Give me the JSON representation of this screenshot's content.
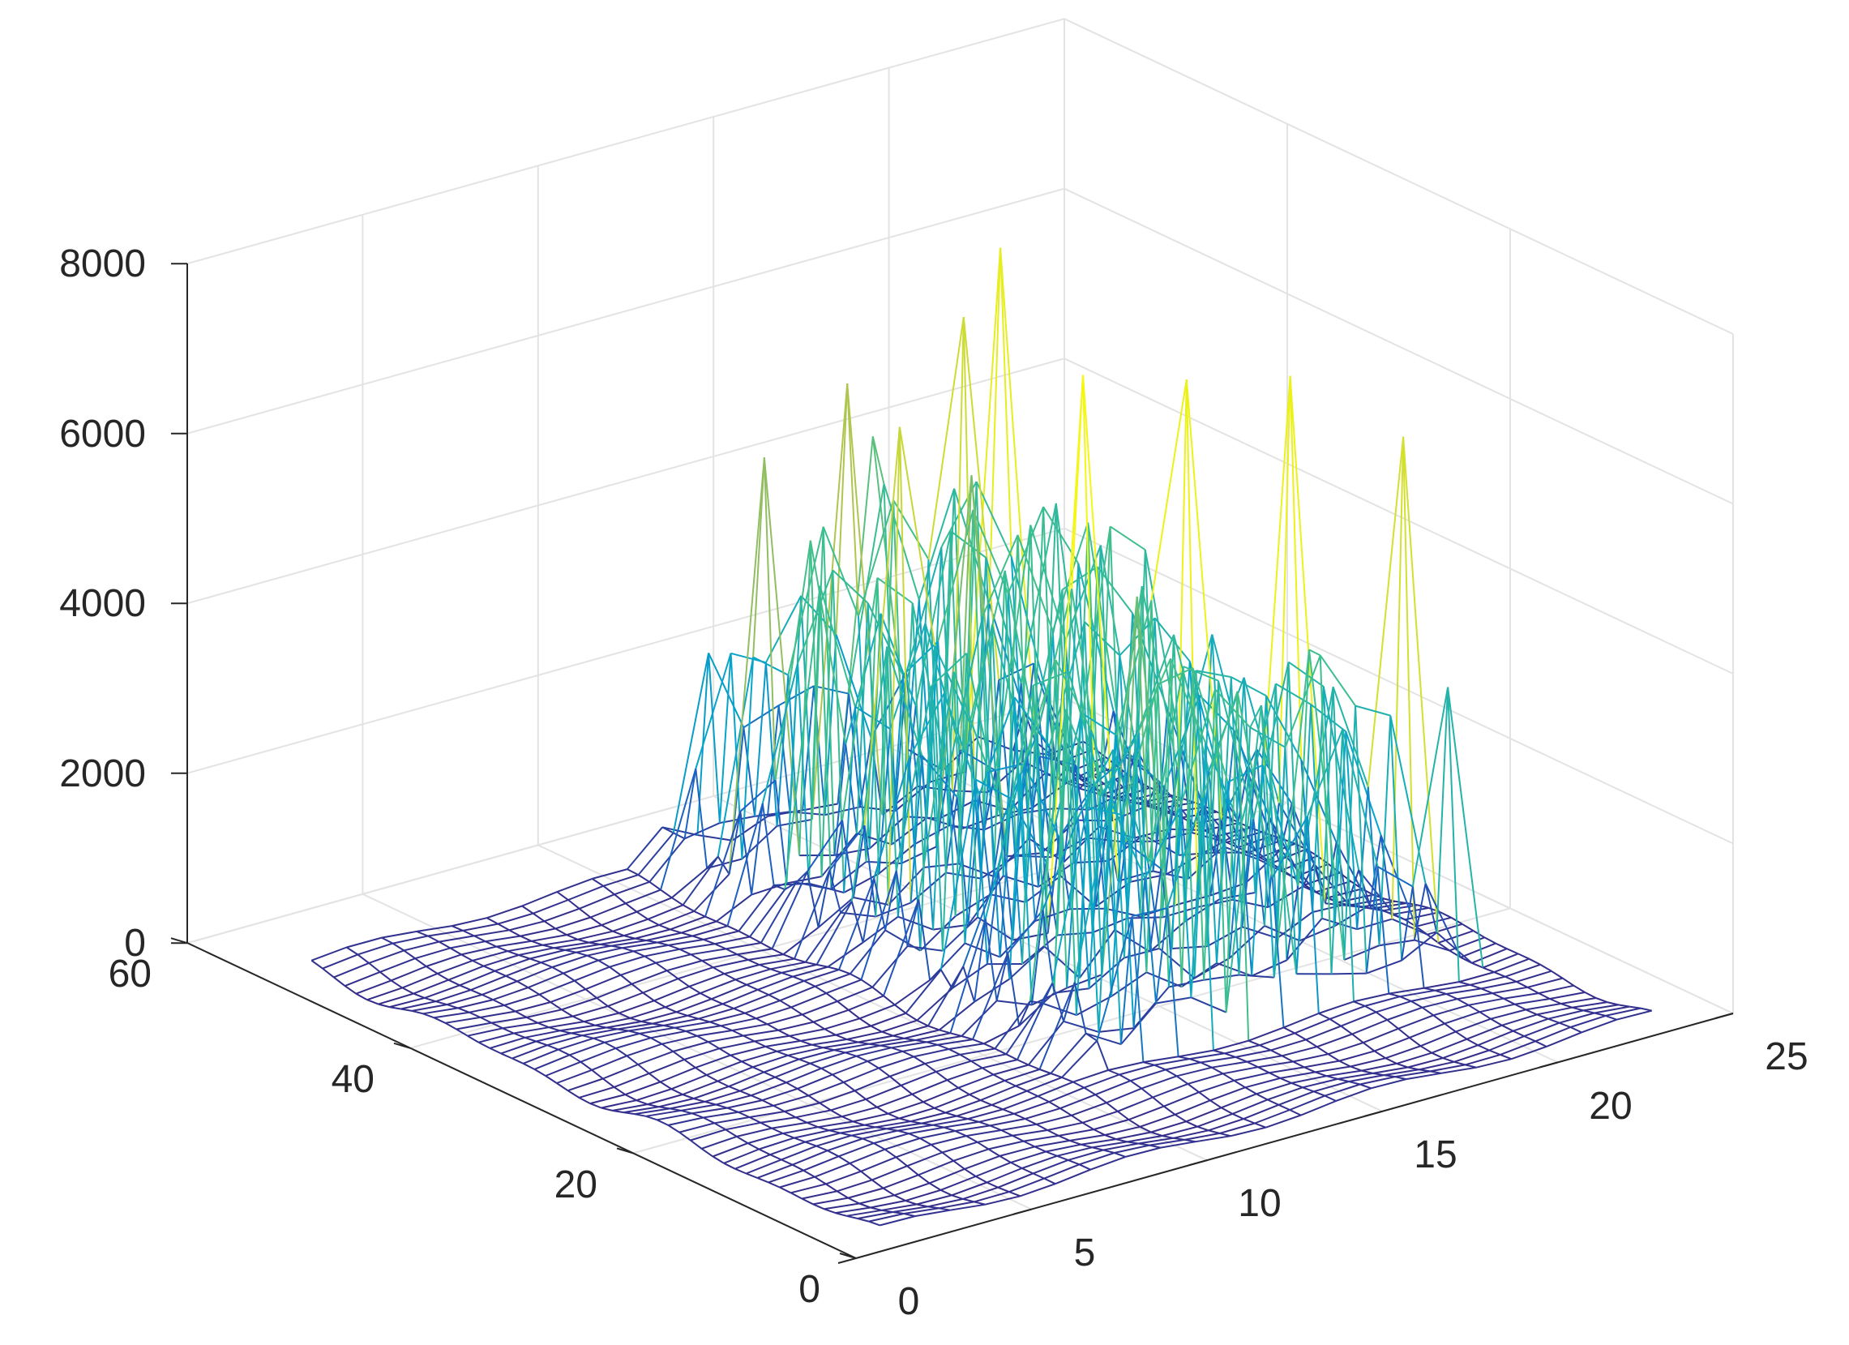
{
  "chart_data": {
    "type": "mesh3d",
    "title": "",
    "xlabel": "",
    "ylabel": "",
    "zlabel": "",
    "x_ticks": [
      "0",
      "5",
      "10",
      "15",
      "20",
      "25"
    ],
    "y_ticks": [
      "0",
      "20",
      "40",
      "60"
    ],
    "z_ticks": [
      "0",
      "2000",
      "4000",
      "6000",
      "8000"
    ],
    "xlim": [
      0,
      25
    ],
    "ylim": [
      0,
      60
    ],
    "zlim": [
      0,
      8000
    ],
    "grid": true,
    "colormap": "parula",
    "colormap_stops": [
      "#352a87",
      "#1e5cbf",
      "#06a4ca",
      "#3bbf8f",
      "#a4be56",
      "#f9fb0e"
    ],
    "mesh_x_range": [
      1,
      23
    ],
    "mesh_y_range": [
      1,
      52
    ],
    "baseline_z": 120,
    "active_x_range": [
      11,
      21
    ],
    "active_y_range": [
      13,
      52
    ],
    "peak_rows": [
      13,
      15,
      17,
      19,
      21,
      23,
      25,
      27,
      29,
      31,
      33,
      35,
      37,
      39,
      41,
      43,
      45,
      47,
      49,
      51
    ],
    "peaks": [
      {
        "x": 20,
        "y": 50,
        "z": 6500
      },
      {
        "x": 18,
        "y": 47,
        "z": 6100
      },
      {
        "x": 17,
        "y": 52,
        "z": 4500
      },
      {
        "x": 15,
        "y": 48,
        "z": 5600
      },
      {
        "x": 12,
        "y": 46,
        "z": 5200
      },
      {
        "x": 16,
        "y": 40,
        "z": 4900
      },
      {
        "x": 13,
        "y": 37,
        "z": 6000
      },
      {
        "x": 16,
        "y": 30,
        "z": 6700
      },
      {
        "x": 18,
        "y": 27,
        "z": 6600
      },
      {
        "x": 20,
        "y": 24,
        "z": 6600
      },
      {
        "x": 15,
        "y": 22,
        "z": 4700
      },
      {
        "x": 21,
        "y": 17,
        "z": 6200
      },
      {
        "x": 18,
        "y": 16,
        "z": 4100
      },
      {
        "x": 16,
        "y": 14,
        "z": 3800
      },
      {
        "x": 21,
        "y": 13,
        "z": 3500
      },
      {
        "x": 14,
        "y": 13,
        "z": 3000
      }
    ]
  }
}
